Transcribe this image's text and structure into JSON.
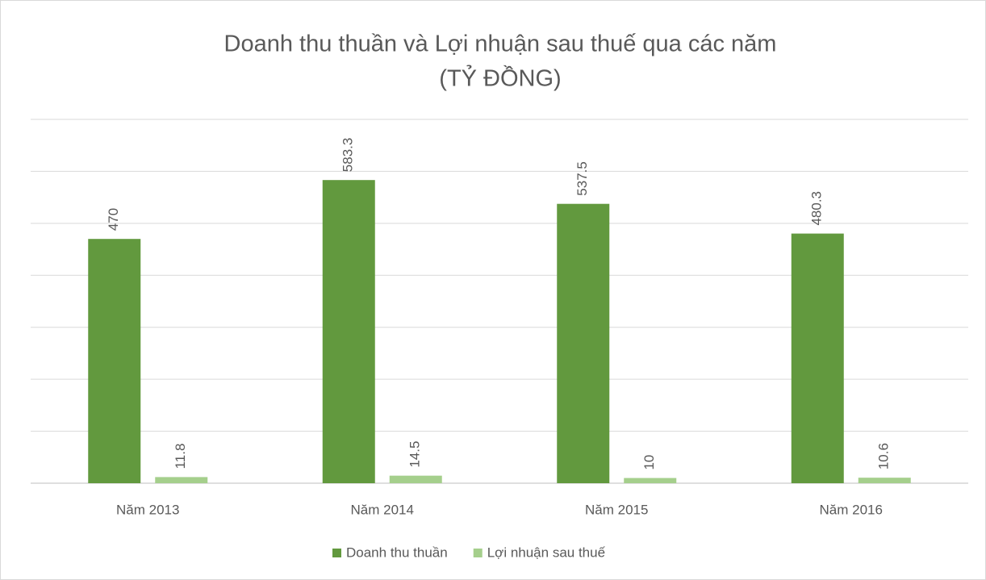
{
  "chart_data": {
    "type": "bar",
    "title": "Doanh thu thuần và Lợi nhuận sau thuế qua các năm",
    "subtitle": "(TỶ ĐỒNG)",
    "categories": [
      "Năm 2013",
      "Năm 2014",
      "Năm 2015",
      "Năm 2016"
    ],
    "series": [
      {
        "name": "Doanh thu thuần",
        "color": "#62993e",
        "values": [
          470,
          583.3,
          537.5,
          480.3
        ]
      },
      {
        "name": "Lợi nhuận sau thuế",
        "color": "#a5cf8c",
        "values": [
          11.8,
          14.5,
          10,
          10.6
        ]
      }
    ],
    "ylim": [
      0,
      700
    ],
    "yticks": [
      0,
      100,
      200,
      300,
      400,
      500,
      600,
      700
    ],
    "grid": true,
    "legend": "bottom"
  }
}
